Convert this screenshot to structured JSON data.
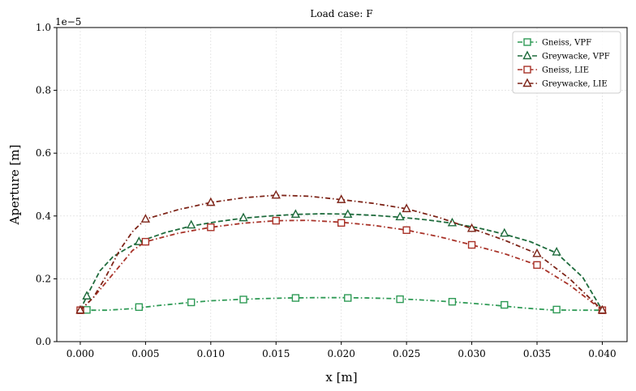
{
  "chart_data": {
    "type": "line",
    "title": "Load case: F",
    "xlabel": "x [m]",
    "ylabel": "Aperture [m]",
    "y_offset_text": "1e−5",
    "xlim": [
      -0.0018,
      0.0419
    ],
    "ylim": [
      0,
      1.0
    ],
    "x_ticks": [
      0.0,
      0.005,
      0.01,
      0.015,
      0.02,
      0.025,
      0.03,
      0.035,
      0.04
    ],
    "x_tick_labels": [
      "0.000",
      "0.005",
      "0.010",
      "0.015",
      "0.020",
      "0.025",
      "0.030",
      "0.035",
      "0.040"
    ],
    "y_ticks": [
      0,
      0.2,
      0.4,
      0.6,
      0.8,
      1.0
    ],
    "y_tick_labels": [
      "0.0",
      "0.2",
      "0.4",
      "0.6",
      "0.8",
      "1.0"
    ],
    "grid": true,
    "legend_position": "top-right",
    "series": [
      {
        "name": "Gneiss, VPF",
        "color": "#2e9a55",
        "dash": "dashdot",
        "marker": "square",
        "line": {
          "x": [
            0.0,
            0.002,
            0.004,
            0.006,
            0.008,
            0.01,
            0.012,
            0.014,
            0.016,
            0.018,
            0.02,
            0.022,
            0.024,
            0.026,
            0.028,
            0.03,
            0.032,
            0.034,
            0.036,
            0.038,
            0.04
          ],
          "y": [
            0.1,
            0.1,
            0.105,
            0.115,
            0.123,
            0.13,
            0.134,
            0.137,
            0.139,
            0.14,
            0.14,
            0.139,
            0.137,
            0.133,
            0.128,
            0.122,
            0.115,
            0.107,
            0.101,
            0.1,
            0.1
          ]
        },
        "markers": {
          "x": [
            0.0005,
            0.0045,
            0.0085,
            0.0125,
            0.0165,
            0.0205,
            0.0245,
            0.0285,
            0.0325,
            0.0365
          ],
          "y": [
            0.101,
            0.11,
            0.125,
            0.134,
            0.139,
            0.139,
            0.135,
            0.127,
            0.117,
            0.102
          ]
        }
      },
      {
        "name": "Greywacke, VPF",
        "color": "#1e6b3c",
        "dash": "dashed",
        "marker": "triangle",
        "line": {
          "x": [
            0.0,
            0.0005,
            0.0015,
            0.0025,
            0.0035,
            0.0045,
            0.0065,
            0.0085,
            0.0105,
            0.0125,
            0.0145,
            0.0165,
            0.0185,
            0.0205,
            0.0225,
            0.0245,
            0.0265,
            0.0285,
            0.0305,
            0.0325,
            0.0345,
            0.0365,
            0.0385,
            0.04
          ],
          "y": [
            0.1,
            0.145,
            0.225,
            0.27,
            0.295,
            0.318,
            0.347,
            0.368,
            0.382,
            0.393,
            0.4,
            0.405,
            0.407,
            0.406,
            0.402,
            0.396,
            0.388,
            0.377,
            0.362,
            0.342,
            0.318,
            0.282,
            0.205,
            0.1
          ]
        },
        "markers": {
          "x": [
            0.0005,
            0.0045,
            0.0085,
            0.0125,
            0.0165,
            0.0205,
            0.0245,
            0.0285,
            0.0325,
            0.0365
          ],
          "y": [
            0.145,
            0.318,
            0.371,
            0.394,
            0.405,
            0.405,
            0.397,
            0.378,
            0.345,
            0.285
          ]
        }
      },
      {
        "name": "Gneiss, LIE",
        "color": "#a83228",
        "dash": "dashdot",
        "marker": "square",
        "line": {
          "x": [
            0.0,
            0.001,
            0.002,
            0.003,
            0.004,
            0.005,
            0.0075,
            0.01,
            0.0125,
            0.015,
            0.0175,
            0.02,
            0.0225,
            0.025,
            0.0275,
            0.03,
            0.0325,
            0.035,
            0.0375,
            0.04
          ],
          "y": [
            0.1,
            0.14,
            0.19,
            0.24,
            0.29,
            0.318,
            0.345,
            0.364,
            0.377,
            0.385,
            0.386,
            0.38,
            0.37,
            0.355,
            0.334,
            0.308,
            0.28,
            0.244,
            0.18,
            0.1
          ]
        },
        "markers": {
          "x": [
            0.0,
            0.005,
            0.01,
            0.015,
            0.02,
            0.025,
            0.03,
            0.035,
            0.04
          ],
          "y": [
            0.1,
            0.318,
            0.364,
            0.385,
            0.378,
            0.355,
            0.308,
            0.244,
            0.1
          ]
        }
      },
      {
        "name": "Greywacke, LIE",
        "color": "#7d2418",
        "dash": "dashdot",
        "marker": "triangle",
        "line": {
          "x": [
            0.0,
            0.001,
            0.002,
            0.003,
            0.004,
            0.005,
            0.0075,
            0.01,
            0.0125,
            0.015,
            0.0175,
            0.02,
            0.0225,
            0.025,
            0.0275,
            0.03,
            0.0325,
            0.035,
            0.0375,
            0.04
          ],
          "y": [
            0.1,
            0.14,
            0.21,
            0.29,
            0.35,
            0.39,
            0.42,
            0.443,
            0.458,
            0.466,
            0.463,
            0.452,
            0.44,
            0.423,
            0.395,
            0.36,
            0.323,
            0.28,
            0.2,
            0.1
          ]
        },
        "markers": {
          "x": [
            0.0,
            0.005,
            0.01,
            0.015,
            0.02,
            0.025,
            0.03,
            0.035,
            0.04
          ],
          "y": [
            0.1,
            0.39,
            0.443,
            0.466,
            0.452,
            0.423,
            0.36,
            0.28,
            0.1
          ]
        }
      }
    ]
  }
}
